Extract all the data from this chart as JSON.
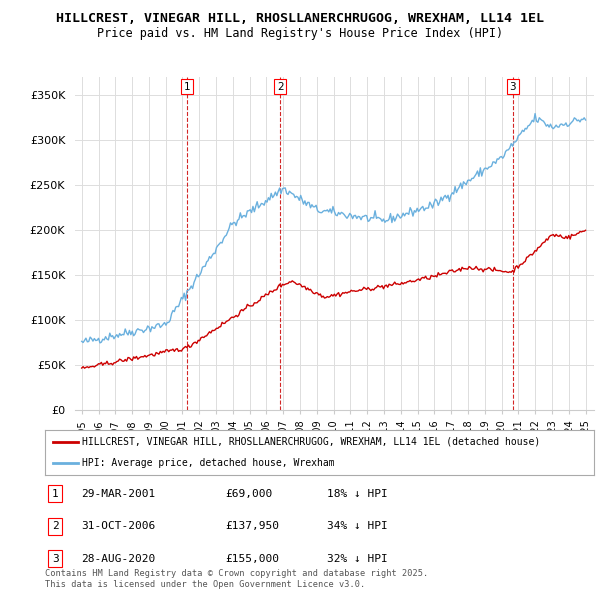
{
  "title_line1": "HILLCREST, VINEGAR HILL, RHOSLLANERCHRUGOG, WREXHAM, LL14 1EL",
  "title_line2": "Price paid vs. HM Land Registry's House Price Index (HPI)",
  "hpi_color": "#6ab0de",
  "sale_color": "#cc0000",
  "vline_color": "#cc0000",
  "background_color": "#ffffff",
  "grid_color": "#dddddd",
  "ylim": [
    0,
    370000
  ],
  "yticks": [
    0,
    50000,
    100000,
    150000,
    200000,
    250000,
    300000,
    350000
  ],
  "ytick_labels": [
    "£0",
    "£50K",
    "£100K",
    "£150K",
    "£200K",
    "£250K",
    "£300K",
    "£350K"
  ],
  "sale_year_nums": [
    2001.25,
    2006.83,
    2020.66
  ],
  "sale_labels": [
    "1",
    "2",
    "3"
  ],
  "legend_sale_label": "HILLCREST, VINEGAR HILL, RHOSLLANERCHRUGOG, WREXHAM, LL14 1EL (detached house)",
  "legend_hpi_label": "HPI: Average price, detached house, Wrexham",
  "table_rows": [
    {
      "num": "1",
      "date": "29-MAR-2001",
      "price": "£69,000",
      "note": "18% ↓ HPI"
    },
    {
      "num": "2",
      "date": "31-OCT-2006",
      "price": "£137,950",
      "note": "34% ↓ HPI"
    },
    {
      "num": "3",
      "date": "28-AUG-2020",
      "price": "£155,000",
      "note": "32% ↓ HPI"
    }
  ],
  "footer": "Contains HM Land Registry data © Crown copyright and database right 2025.\nThis data is licensed under the Open Government Licence v3.0."
}
